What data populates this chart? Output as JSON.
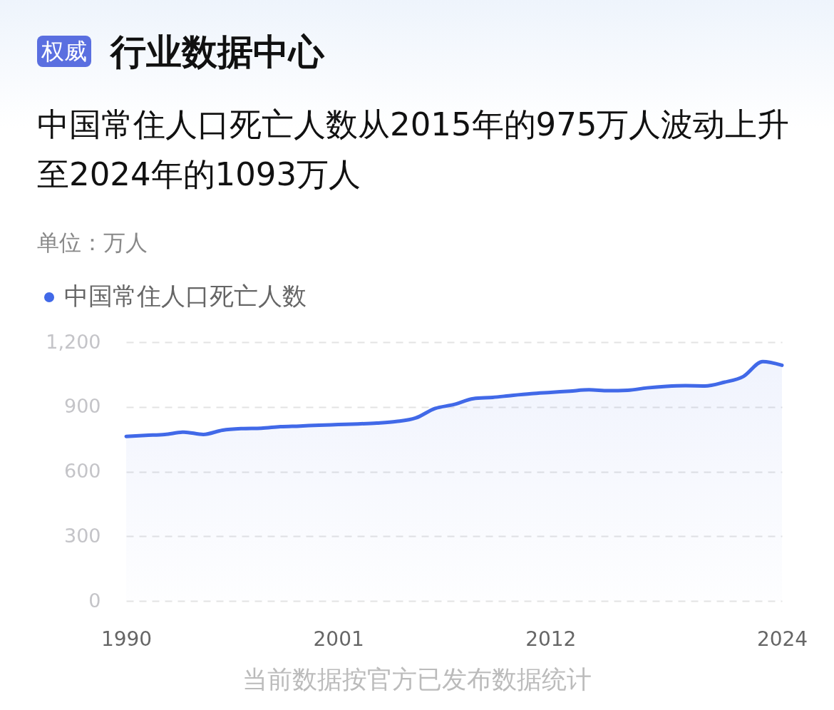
{
  "chart_data": {
    "type": "area",
    "title": "行业数据中心",
    "subtitle": "中国常住人口死亡人数从2015年的975万人波动上升至2024年的1093万人",
    "ylabel": "单位：万人",
    "categories": [
      "1990",
      null,
      null,
      null,
      null,
      null,
      null,
      null,
      null,
      null,
      null,
      "2001",
      null,
      null,
      null,
      null,
      null,
      null,
      null,
      null,
      null,
      null,
      "2012",
      null,
      null,
      null,
      null,
      null,
      null,
      null,
      null,
      null,
      null,
      null,
      "2024"
    ],
    "series": [
      {
        "name": "中国常住人口死亡人数",
        "color": "#4169e8",
        "values": [
          763,
          768,
          772,
          783,
          772,
          792,
          799,
          801,
          808,
          811,
          815,
          818,
          821,
          825,
          832,
          848,
          892,
          911,
          938,
          944,
          953,
          961,
          967,
          973,
          979,
          975,
          977,
          988,
          995,
          998,
          997,
          1014,
          1041,
          1110,
          1093
        ]
      }
    ],
    "ylim": [
      0,
      1200
    ],
    "yticks": [
      0,
      300,
      600,
      900,
      {
        "value": 1200,
        "label": "1,200"
      }
    ],
    "grid": "y",
    "legend": "top left",
    "annotations": [
      "权威",
      "当前数据按官方已发布数据统计"
    ]
  }
}
